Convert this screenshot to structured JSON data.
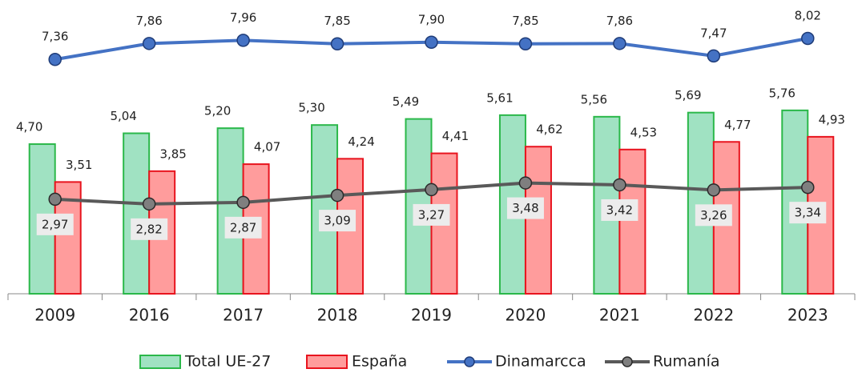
{
  "chart_data": {
    "type": "bar",
    "categories": [
      "2009",
      "2016",
      "2017",
      "2018",
      "2019",
      "2020",
      "2021",
      "2022",
      "2023"
    ],
    "ylim": [
      0,
      9
    ],
    "series": [
      {
        "name": "Total UE-27",
        "type": "bar",
        "color": "#a0e2c2",
        "edge_color": "#2bb84a",
        "values": [
          4.7,
          5.04,
          5.2,
          5.3,
          5.49,
          5.61,
          5.56,
          5.69,
          5.76
        ],
        "value_labels": [
          "4,70",
          "5,04",
          "5,20",
          "5,30",
          "5,49",
          "5,61",
          "5,56",
          "5,69",
          "5,76"
        ]
      },
      {
        "name": "España",
        "type": "bar",
        "color": "#ff9c9c",
        "edge_color": "#e8141e",
        "values": [
          3.51,
          3.85,
          4.07,
          4.24,
          4.41,
          4.62,
          4.53,
          4.77,
          4.93
        ],
        "value_labels": [
          "3,51",
          "3,85",
          "4,07",
          "4,24",
          "4,41",
          "4,62",
          "4,53",
          "4,77",
          "4,93"
        ]
      },
      {
        "name": "Dinamarcca",
        "type": "line",
        "color": "#4472c4",
        "edge_color": "#1f3c78",
        "values": [
          7.36,
          7.86,
          7.96,
          7.85,
          7.9,
          7.85,
          7.86,
          7.47,
          8.02
        ],
        "value_labels": [
          "7,36",
          "7,86",
          "7,96",
          "7,85",
          "7,90",
          "7,85",
          "7,86",
          "7,47",
          "8,02"
        ]
      },
      {
        "name": "Rumanía",
        "type": "line",
        "color": "#595959",
        "edge_color": "#2a2a2a",
        "values": [
          2.97,
          2.82,
          2.87,
          3.09,
          3.27,
          3.48,
          3.42,
          3.26,
          3.34
        ],
        "value_labels": [
          "2,97",
          "2,82",
          "2,87",
          "3,09",
          "3,27",
          "3,48",
          "3,42",
          "3,26",
          "3,34"
        ]
      }
    ]
  }
}
